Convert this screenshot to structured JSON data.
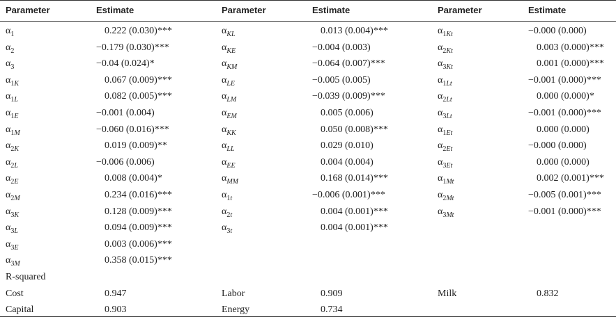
{
  "table": {
    "header": [
      "Parameter",
      "Estimate",
      "Parameter",
      "Estimate",
      "Parameter",
      "Estimate"
    ],
    "columns": [
      {
        "rows": [
          {
            "symbol": "α",
            "sub": "1",
            "estimate": "0.222 (0.030)***"
          },
          {
            "symbol": "α",
            "sub": "2",
            "estimate": "−0.179 (0.030)***"
          },
          {
            "symbol": "α",
            "sub": "3",
            "estimate": "−0.04 (0.024)*"
          },
          {
            "symbol": "α",
            "sub": "1K",
            "estimate": "0.067 (0.009)***"
          },
          {
            "symbol": "α",
            "sub": "1L",
            "estimate": "0.082 (0.005)***"
          },
          {
            "symbol": "α",
            "sub": "1E",
            "estimate": "−0.001 (0.004)"
          },
          {
            "symbol": "α",
            "sub": "1M",
            "estimate": "−0.060 (0.016)***"
          },
          {
            "symbol": "α",
            "sub": "2K",
            "estimate": "0.019 (0.009)**"
          },
          {
            "symbol": "α",
            "sub": "2L",
            "estimate": "−0.006 (0.006)"
          },
          {
            "symbol": "α",
            "sub": "2E",
            "estimate": "0.008 (0.004)*"
          },
          {
            "symbol": "α",
            "sub": "2M",
            "estimate": "0.234 (0.016)***"
          },
          {
            "symbol": "α",
            "sub": "3K",
            "estimate": "0.128 (0.009)***"
          },
          {
            "symbol": "α",
            "sub": "3L",
            "estimate": "0.094 (0.009)***"
          },
          {
            "symbol": "α",
            "sub": "3E",
            "estimate": "0.003 (0.006)***"
          },
          {
            "symbol": "α",
            "sub": "3M",
            "estimate": "0.358 (0.015)***"
          }
        ]
      },
      {
        "rows": [
          {
            "symbol": "α",
            "sub": "KL",
            "estimate": "0.013 (0.004)***"
          },
          {
            "symbol": "α",
            "sub": "KE",
            "estimate": "−0.004 (0.003)"
          },
          {
            "symbol": "α",
            "sub": "KM",
            "estimate": "−0.064 (0.007)***"
          },
          {
            "symbol": "α",
            "sub": "LE",
            "estimate": "−0.005 (0.005)"
          },
          {
            "symbol": "α",
            "sub": "LM",
            "estimate": "−0.039 (0.009)***"
          },
          {
            "symbol": "α",
            "sub": "EM",
            "estimate": "0.005 (0.006)"
          },
          {
            "symbol": "α",
            "sub": "KK",
            "estimate": "0.050 (0.008)***"
          },
          {
            "symbol": "α",
            "sub": "LL",
            "estimate": "0.029 (0.010)"
          },
          {
            "symbol": "α",
            "sub": "EE",
            "estimate": "0.004 (0.004)"
          },
          {
            "symbol": "α",
            "sub": "MM",
            "estimate": "0.168 (0.014)***"
          },
          {
            "symbol": "α",
            "sub": "1t",
            "estimate": "−0.006 (0.001)***"
          },
          {
            "symbol": "α",
            "sub": "2t",
            "estimate": "0.004 (0.001)***"
          },
          {
            "symbol": "α",
            "sub": "3t",
            "estimate": "0.004 (0.001)***"
          }
        ]
      },
      {
        "rows": [
          {
            "symbol": "α",
            "sub": "1Kt",
            "estimate": "−0.000 (0.000)"
          },
          {
            "symbol": "α",
            "sub": "2Kt",
            "estimate": "0.003 (0.000)***"
          },
          {
            "symbol": "α",
            "sub": "3Kt",
            "estimate": "0.001 (0.000)***"
          },
          {
            "symbol": "α",
            "sub": "1Lt",
            "estimate": "−0.001 (0.000)***"
          },
          {
            "symbol": "α",
            "sub": "2Lt",
            "estimate": "0.000 (0.000)*"
          },
          {
            "symbol": "α",
            "sub": "3Lt",
            "estimate": "−0.001 (0.000)***"
          },
          {
            "symbol": "α",
            "sub": "1Et",
            "estimate": "0.000 (0.000)"
          },
          {
            "symbol": "α",
            "sub": "2Et",
            "estimate": "−0.000 (0.000)"
          },
          {
            "symbol": "α",
            "sub": "3Et",
            "estimate": "0.000 (0.000)"
          },
          {
            "symbol": "α",
            "sub": "1Mt",
            "estimate": "0.002 (0.001)***"
          },
          {
            "symbol": "α",
            "sub": "2Mt",
            "estimate": "−0.005 (0.001)***"
          },
          {
            "symbol": "α",
            "sub": "3Mt",
            "estimate": "−0.001 (0.000)***"
          }
        ]
      }
    ],
    "r_squared": {
      "label": "R-squared",
      "rows": [
        [
          {
            "name": "Cost",
            "value": "0.947"
          },
          {
            "name": "Labor",
            "value": "0.909"
          },
          {
            "name": "Milk",
            "value": "0.832"
          }
        ],
        [
          {
            "name": "Capital",
            "value": "0.903"
          },
          {
            "name": "Energy",
            "value": "0.734"
          }
        ]
      ]
    }
  }
}
